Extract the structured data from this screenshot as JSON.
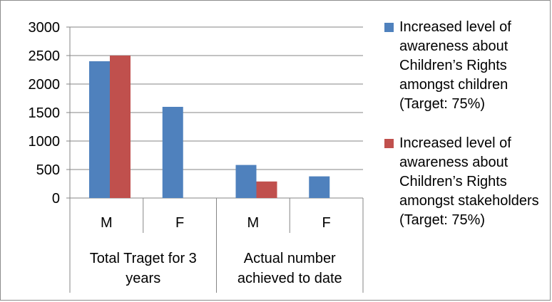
{
  "chart_data": {
    "type": "bar",
    "categories": [
      "M",
      "F",
      "M",
      "F"
    ],
    "groups": [
      "Total Traget for 3 years",
      "Actual number achieved to date"
    ],
    "series": [
      {
        "name": "Increased level of awareness about Children’s Rights amongst children (Target: 75%)",
        "color": "#4f81bd",
        "values": [
          2400,
          1600,
          580,
          380
        ]
      },
      {
        "name": "Increased level of awareness about Children’s Rights amongst stakeholders (Target: 75%)",
        "color": "#c0504d",
        "values": [
          2500,
          0,
          290,
          0
        ]
      }
    ],
    "ylim": [
      0,
      3000
    ],
    "yticks": [
      0,
      500,
      1000,
      1500,
      2000,
      2500,
      3000
    ],
    "grid": true,
    "legend_position": "right"
  },
  "legend": {
    "items": [
      {
        "label": "Increased level of awareness about Children’s Rights amongst children (Target: 75%)",
        "color": "#4f81bd"
      },
      {
        "label": "Increased level of awareness about Children’s Rights amongst stakeholders (Target: 75%)",
        "color": "#c0504d"
      }
    ]
  }
}
